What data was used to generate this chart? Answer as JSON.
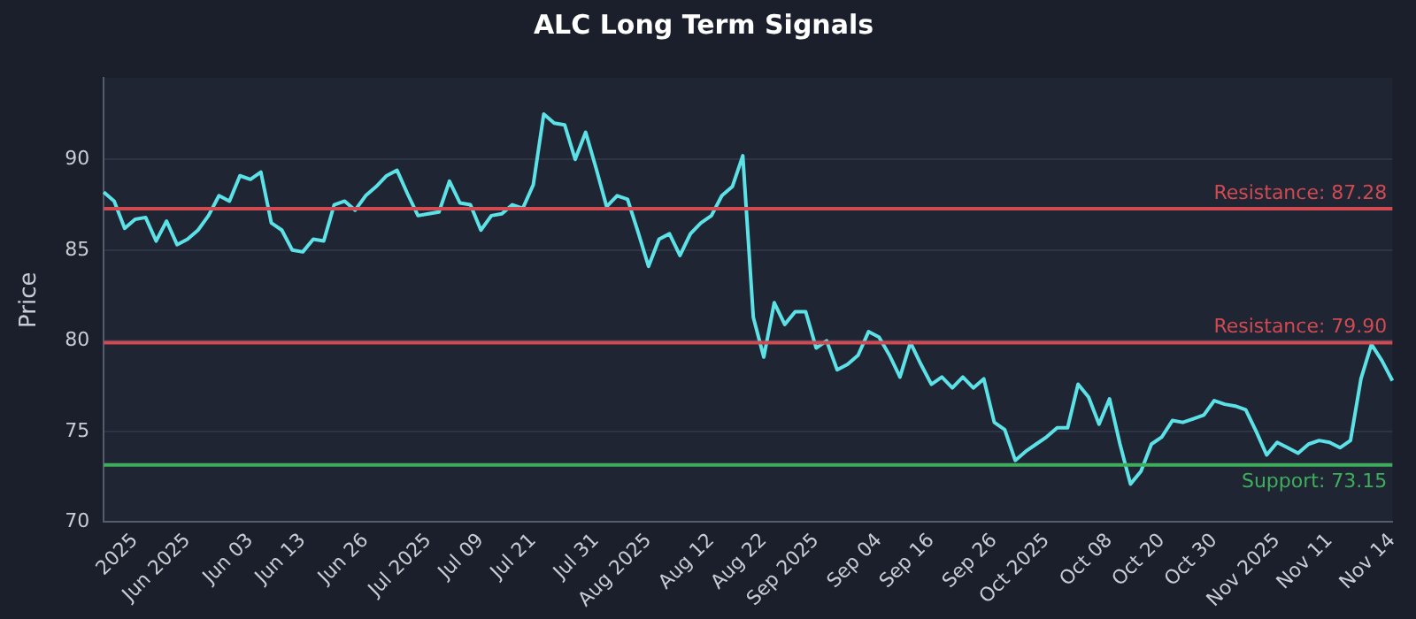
{
  "chart_data": {
    "type": "line",
    "title": "ALC Long Term Signals",
    "ylabel": "Price",
    "categories": [
      null,
      null,
      null,
      "2025",
      null,
      null,
      null,
      null,
      "Jun 2025",
      null,
      null,
      null,
      null,
      null,
      "Jun 03",
      null,
      null,
      null,
      null,
      "Jun 13",
      null,
      null,
      null,
      null,
      null,
      "Jun 26",
      null,
      null,
      null,
      null,
      null,
      "Jul 2025",
      null,
      null,
      null,
      null,
      "Jul 09",
      null,
      null,
      null,
      null,
      "Jul 21",
      null,
      null,
      null,
      null,
      null,
      "Jul 31",
      null,
      null,
      null,
      null,
      "Aug 2025",
      null,
      null,
      null,
      null,
      null,
      "Aug 12",
      null,
      null,
      null,
      null,
      "Aug 22",
      null,
      null,
      null,
      null,
      "Sep 2025",
      null,
      null,
      null,
      null,
      null,
      "Sep 04",
      null,
      null,
      null,
      null,
      "Sep 16",
      null,
      null,
      null,
      null,
      null,
      "Sep 26",
      null,
      null,
      null,
      null,
      "Oct 2025",
      null,
      null,
      null,
      null,
      null,
      "Oct 08",
      null,
      null,
      null,
      null,
      "Oct 20",
      null,
      null,
      null,
      null,
      "Oct 30",
      null,
      null,
      null,
      null,
      null,
      "Nov 2025",
      null,
      null,
      null,
      null,
      "Nov 11",
      null,
      null,
      null,
      null,
      null,
      "Nov 14"
    ],
    "series": [
      {
        "color": "#5ce1e6",
        "values": [
          88.2,
          87.7,
          86.2,
          86.7,
          86.8,
          85.5,
          86.6,
          85.3,
          85.6,
          86.1,
          86.9,
          88.0,
          87.7,
          89.1,
          88.9,
          89.3,
          86.5,
          86.1,
          85.0,
          84.9,
          85.6,
          85.5,
          87.5,
          87.7,
          87.2,
          88.0,
          88.5,
          89.1,
          89.4,
          88.1,
          86.9,
          87.0,
          87.1,
          88.8,
          87.6,
          87.5,
          86.1,
          86.9,
          87.0,
          87.5,
          87.3,
          88.6,
          92.5,
          92.0,
          91.9,
          90.0,
          91.5,
          89.5,
          87.4,
          88.0,
          87.8,
          86.0,
          84.1,
          85.6,
          85.9,
          84.7,
          85.9,
          86.5,
          86.9,
          88.0,
          88.5,
          90.2,
          81.3,
          79.1,
          82.1,
          80.9,
          81.6,
          81.6,
          79.6,
          80.0,
          78.4,
          78.7,
          79.2,
          80.5,
          80.2,
          79.2,
          78.0,
          79.9,
          78.7,
          77.6,
          78.0,
          77.4,
          78.0,
          77.4,
          77.9,
          75.5,
          75.1,
          73.4,
          73.9,
          74.3,
          74.7,
          75.2,
          75.2,
          77.6,
          76.9,
          75.4,
          76.8,
          74.3,
          72.1,
          72.8,
          74.3,
          74.7,
          75.6,
          75.5,
          75.7,
          75.9,
          76.7,
          76.5,
          76.4,
          76.2,
          75.0,
          73.7,
          74.4,
          74.1,
          73.8,
          74.3,
          74.5,
          74.4,
          74.1,
          74.5,
          77.9,
          79.8,
          78.9,
          77.8
        ]
      }
    ],
    "ylim": [
      70,
      94.5
    ],
    "yticks": [
      70,
      75,
      80,
      85,
      90
    ],
    "grid": "y",
    "legend": false,
    "marker": "none",
    "line_style": "solid",
    "ref_lines": [
      {
        "axis": "y",
        "value": 87.28,
        "label": "Resistance: 87.28",
        "color": "#d04a52"
      },
      {
        "axis": "y",
        "value": 79.9,
        "label": "Resistance: 79.90",
        "color": "#d04a52"
      },
      {
        "axis": "y",
        "value": 73.15,
        "label": "Support: 73.15",
        "color": "#3fae5c"
      }
    ]
  }
}
